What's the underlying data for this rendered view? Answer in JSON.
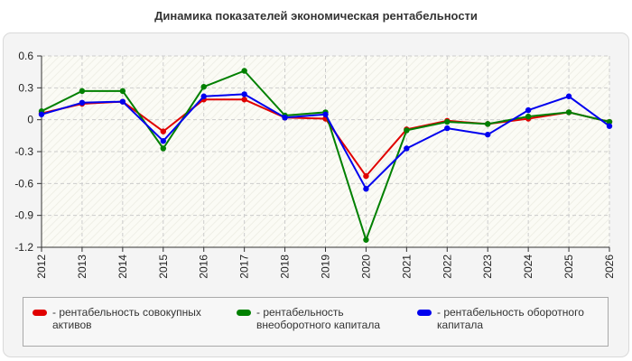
{
  "chart_data": {
    "type": "line",
    "title": "Динамика показателей экономическая рентабельности",
    "x": [
      "2012",
      "2013",
      "2014",
      "2015",
      "2016",
      "2017",
      "2018",
      "2019",
      "2020",
      "2021",
      "2022",
      "2023",
      "2024",
      "2025",
      "2026"
    ],
    "ylim": [
      -1.2,
      0.6
    ],
    "yticks": [
      "0.6",
      "0.3",
      "0",
      "-0.3",
      "-0.6",
      "-0.9",
      "-1.2"
    ],
    "grid": true,
    "legend_position": "bottom",
    "series": [
      {
        "name": "- рентабельность совокупных активов",
        "color": "#e00000",
        "values": [
          0.06,
          0.15,
          0.17,
          -0.11,
          0.19,
          0.19,
          0.02,
          0.01,
          -0.53,
          -0.09,
          -0.01,
          -0.04,
          0.01,
          0.07,
          -0.02
        ]
      },
      {
        "name": "- рентабельность внеоборотного капитала",
        "color": "#008000",
        "values": [
          0.08,
          0.27,
          0.27,
          -0.27,
          0.31,
          0.46,
          0.04,
          0.07,
          -1.13,
          -0.1,
          -0.02,
          -0.04,
          0.03,
          0.07,
          -0.02
        ]
      },
      {
        "name": "- рентабельность оборотного капитала",
        "color": "#0000ee",
        "values": [
          0.05,
          0.16,
          0.17,
          -0.2,
          0.22,
          0.24,
          0.02,
          0.05,
          -0.65,
          -0.27,
          -0.08,
          -0.14,
          0.09,
          0.22,
          -0.06
        ]
      }
    ]
  }
}
